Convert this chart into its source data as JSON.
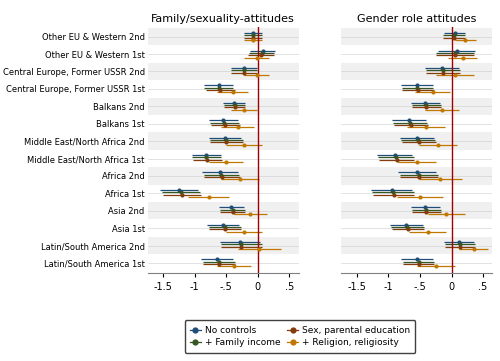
{
  "categories": [
    "Other EU & Western 2nd",
    "Other EU & Western 1st",
    "Central Europe, Former USSR 2nd",
    "Central Europe, Former USSR 1st",
    "Balkans 2nd",
    "Balkans 1st",
    "Middle East/North Africa 2nd",
    "Middle East/North Africa 1st",
    "Africa 2nd",
    "Africa 1st",
    "Asia 2nd",
    "Asia 1st",
    "Latin/South America 2nd",
    "Latin/South America 1st"
  ],
  "colors": {
    "no_controls": "#1f4e79",
    "family_income": "#375623",
    "sex_parental": "#843c0c",
    "religion": "#c07800"
  },
  "panel1": {
    "title": "Family/sexuality-attitudes",
    "xlim": [
      -1.75,
      0.65
    ],
    "xticks": [
      -1.5,
      -1.0,
      -0.5,
      0.0,
      0.5
    ],
    "xticklabels": [
      "-1.5",
      "-1",
      "-.5",
      "0",
      ".5"
    ],
    "data": {
      "no_controls": {
        "est": [
          -0.08,
          0.08,
          -0.22,
          -0.62,
          -0.38,
          -0.55,
          -0.52,
          -0.82,
          -0.6,
          -1.25,
          -0.42,
          -0.55,
          -0.28,
          -0.65
        ],
        "lo": [
          -0.22,
          -0.12,
          -0.42,
          -0.85,
          -0.55,
          -0.78,
          -0.78,
          -1.05,
          -0.88,
          -1.55,
          -0.62,
          -0.8,
          -0.6,
          -0.9
        ],
        "hi": [
          0.06,
          0.28,
          -0.02,
          -0.39,
          -0.21,
          -0.32,
          -0.26,
          -0.59,
          -0.32,
          -0.95,
          -0.22,
          -0.3,
          0.04,
          -0.4
        ]
      },
      "family_income": {
        "est": [
          -0.08,
          0.06,
          -0.22,
          -0.62,
          -0.37,
          -0.53,
          -0.5,
          -0.82,
          -0.58,
          -1.22,
          -0.4,
          -0.52,
          -0.26,
          -0.62
        ],
        "lo": [
          -0.22,
          -0.14,
          -0.42,
          -0.85,
          -0.54,
          -0.76,
          -0.76,
          -1.05,
          -0.86,
          -1.52,
          -0.6,
          -0.77,
          -0.58,
          -0.87
        ],
        "hi": [
          0.06,
          0.26,
          -0.02,
          -0.39,
          -0.2,
          -0.3,
          -0.24,
          -0.59,
          -0.3,
          -0.92,
          -0.2,
          -0.27,
          0.06,
          -0.37
        ]
      },
      "sex_parental": {
        "est": [
          -0.08,
          0.05,
          -0.22,
          -0.6,
          -0.37,
          -0.52,
          -0.5,
          -0.8,
          -0.57,
          -1.2,
          -0.4,
          -0.52,
          -0.26,
          -0.62
        ],
        "lo": [
          -0.22,
          -0.15,
          -0.42,
          -0.83,
          -0.54,
          -0.75,
          -0.76,
          -1.03,
          -0.85,
          -1.5,
          -0.6,
          -0.77,
          -0.58,
          -0.87
        ],
        "hi": [
          0.06,
          0.25,
          -0.02,
          -0.37,
          -0.2,
          -0.29,
          -0.24,
          -0.57,
          -0.29,
          -0.9,
          -0.2,
          -0.27,
          0.06,
          -0.37
        ]
      },
      "religion": {
        "est": [
          -0.08,
          -0.02,
          -0.02,
          -0.4,
          -0.22,
          -0.32,
          -0.22,
          -0.5,
          -0.28,
          -0.78,
          -0.12,
          -0.22,
          0.02,
          -0.38
        ],
        "lo": [
          -0.22,
          -0.22,
          -0.22,
          -0.65,
          -0.42,
          -0.58,
          -0.5,
          -0.77,
          -0.58,
          -1.1,
          -0.38,
          -0.5,
          -0.32,
          -0.65
        ],
        "hi": [
          0.06,
          0.18,
          0.18,
          -0.15,
          -0.02,
          -0.06,
          0.06,
          -0.23,
          0.02,
          -0.46,
          0.14,
          0.06,
          0.36,
          -0.11
        ]
      }
    }
  },
  "panel2": {
    "title": "Gender role attitudes",
    "xlim": [
      -1.75,
      0.65
    ],
    "xticks": [
      -1.5,
      -1.0,
      -0.5,
      0.0,
      0.5
    ],
    "xticklabels": [
      "-1.5",
      "-1",
      "-.5",
      "0",
      ".5"
    ],
    "data": {
      "no_controls": {
        "est": [
          0.05,
          0.08,
          -0.15,
          -0.55,
          -0.42,
          -0.68,
          -0.55,
          -0.9,
          -0.55,
          -0.95,
          -0.42,
          -0.72,
          0.12,
          -0.55
        ],
        "lo": [
          -0.12,
          -0.22,
          -0.42,
          -0.8,
          -0.65,
          -0.95,
          -0.82,
          -1.18,
          -0.85,
          -1.28,
          -0.65,
          -0.98,
          -0.12,
          -0.8
        ],
        "hi": [
          0.22,
          0.38,
          0.12,
          -0.3,
          -0.19,
          -0.41,
          -0.28,
          -0.62,
          -0.25,
          -0.62,
          -0.19,
          -0.46,
          0.36,
          -0.3
        ]
      },
      "family_income": {
        "est": [
          0.04,
          0.06,
          -0.14,
          -0.54,
          -0.4,
          -0.66,
          -0.53,
          -0.88,
          -0.52,
          -0.93,
          -0.4,
          -0.7,
          0.13,
          -0.52
        ],
        "lo": [
          -0.13,
          -0.24,
          -0.41,
          -0.79,
          -0.63,
          -0.93,
          -0.8,
          -1.16,
          -0.82,
          -1.26,
          -0.63,
          -0.96,
          -0.11,
          -0.77
        ],
        "hi": [
          0.21,
          0.36,
          0.13,
          -0.29,
          -0.17,
          -0.39,
          -0.26,
          -0.6,
          -0.22,
          -0.6,
          -0.17,
          -0.44,
          0.37,
          -0.27
        ]
      },
      "sex_parental": {
        "est": [
          0.04,
          0.06,
          -0.14,
          -0.53,
          -0.4,
          -0.65,
          -0.52,
          -0.87,
          -0.52,
          -0.92,
          -0.4,
          -0.69,
          0.13,
          -0.52
        ],
        "lo": [
          -0.13,
          -0.24,
          -0.41,
          -0.78,
          -0.63,
          -0.92,
          -0.79,
          -1.15,
          -0.82,
          -1.25,
          -0.63,
          -0.95,
          -0.11,
          -0.77
        ],
        "hi": [
          0.21,
          0.36,
          0.13,
          -0.28,
          -0.17,
          -0.38,
          -0.25,
          -0.59,
          -0.22,
          -0.59,
          -0.17,
          -0.43,
          0.37,
          -0.27
        ]
      },
      "religion": {
        "est": [
          0.22,
          0.18,
          0.05,
          -0.3,
          -0.15,
          -0.4,
          -0.22,
          -0.55,
          -0.18,
          -0.5,
          -0.08,
          -0.38,
          0.35,
          -0.25
        ],
        "lo": [
          0.05,
          -0.05,
          -0.25,
          -0.58,
          -0.42,
          -0.7,
          -0.52,
          -0.85,
          -0.52,
          -0.86,
          -0.38,
          -0.68,
          0.12,
          -0.55
        ],
        "hi": [
          0.39,
          0.41,
          0.35,
          -0.02,
          0.12,
          -0.1,
          0.08,
          -0.25,
          0.16,
          -0.14,
          0.22,
          -0.08,
          0.58,
          0.05
        ]
      }
    }
  },
  "legend": {
    "no_controls": "No controls",
    "family_income": "+ Family income",
    "sex_parental": "Sex, parental education",
    "religion": "+ Religion, religiosity"
  },
  "figsize": [
    5.0,
    3.61
  ],
  "dpi": 100
}
